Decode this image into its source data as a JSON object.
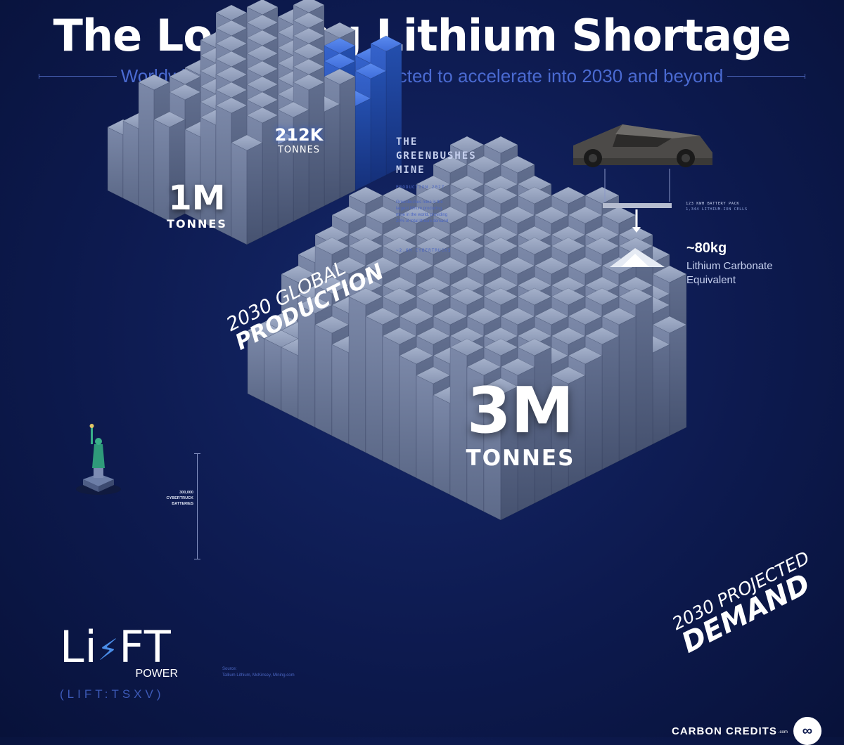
{
  "title": "The Looming Lithium Shortage",
  "subtitle": "Worldwide lithium demand is expected to accelerate into 2030 and beyond",
  "production": {
    "value": "1M",
    "unit": "TONNES",
    "caption_line1": "2030 GLOBAL",
    "caption_line2": "PRODUCTION"
  },
  "greenbushes": {
    "value": "212K",
    "unit": "TONNES",
    "title_lines": [
      "THE",
      "GREENBUSHES",
      "MINE"
    ],
    "sub_title": "PRODUCTION 2027",
    "description_lines": [
      "Greenbushes mine is the",
      "largest lithium producing",
      "mine in the world, providing",
      "20% of total lithium demand"
    ],
    "cybertrucks": "~2.6M CYBERTRUCKS"
  },
  "cybertruck": {
    "battery_label_line1": "123 KWH BATTERY PACK",
    "battery_label_line2": "1,344 LITHIUM-ION CELLS",
    "value": "~80kg",
    "desc_line1": "Lithium Carbonate",
    "desc_line2": "Equivalent"
  },
  "scale_note": [
    "300,000",
    "CYBERTRUCK",
    "BATTERIES"
  ],
  "demand": {
    "value": "3M",
    "unit": "TONNES",
    "caption_line1": "2030 PROJECTED",
    "caption_line2": "DEMAND"
  },
  "logo": {
    "brand_li": "Li",
    "brand_ft": "FT",
    "power": "POWER",
    "ticker": "(LIFT:TSXV)"
  },
  "source": {
    "label": "Source:",
    "text": "Tallium Lithium, McKinsey, Mining.com"
  },
  "footer": {
    "brand": "CARBON CREDITS",
    "suffix": ".com"
  },
  "colors": {
    "background": "#0d1a4f",
    "block": "#6f7d9c",
    "block_highlight": "#3f6dd9",
    "accent_text": "#4a6ad1"
  }
}
